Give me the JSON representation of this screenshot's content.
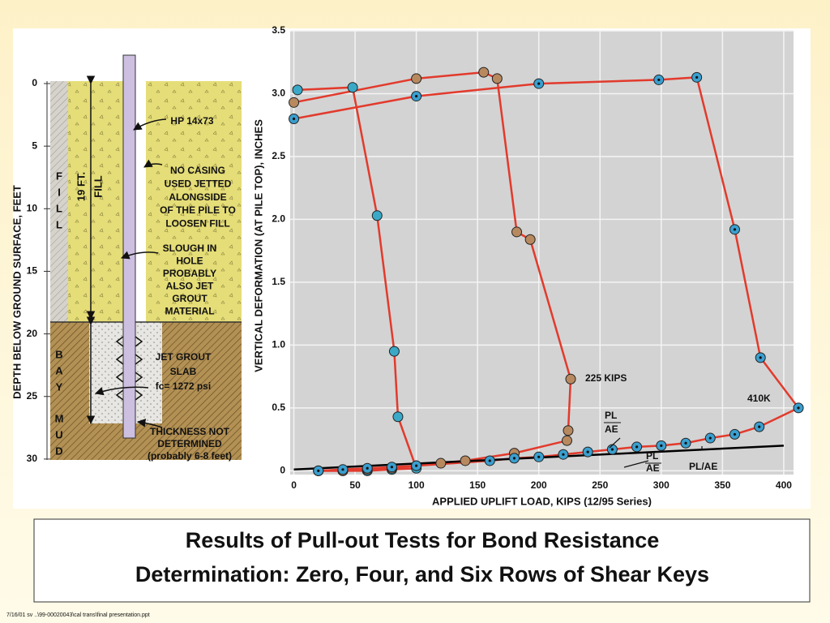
{
  "chart_data": {
    "type": "line",
    "x_label": "APPLIED UPLIFT LOAD, KIPS (12/95 Series)",
    "y_label": "VERTICAL DEFORMATION (AT PILE TOP), INCHES",
    "xlim": [
      -3,
      408
    ],
    "ylim": [
      -0.03,
      3.5
    ],
    "xticks": [
      0,
      50,
      100,
      150,
      200,
      250,
      300,
      350,
      400
    ],
    "yticks": [
      0,
      0.5,
      {
        "value": 1,
        "label": "1.0"
      },
      1.5,
      {
        "value": 2,
        "label": "2.0"
      },
      2.5,
      {
        "value": 3,
        "label": "3.0"
      },
      3.5
    ],
    "grid": true,
    "series": [
      {
        "color": "#3aa9c8",
        "line_color": "#e23a2c",
        "marker": "plain",
        "x": [
          20,
          40,
          60,
          80,
          100,
          85,
          82,
          68,
          48,
          3
        ],
        "values": [
          0,
          0,
          0,
          0.01,
          0.02,
          0.43,
          0.95,
          2.03,
          3.05,
          3.03
        ]
      },
      {
        "color": "#b8895f",
        "line_color": "#e23a2c",
        "marker": "plain",
        "x": [
          20,
          40,
          60,
          80,
          100,
          120,
          140,
          180,
          223,
          224,
          226,
          193,
          182,
          166,
          155,
          100,
          0
        ],
        "values": [
          0,
          0,
          0.01,
          0.02,
          0.04,
          0.06,
          0.08,
          0.14,
          0.24,
          0.32,
          0.73,
          1.84,
          1.9,
          3.12,
          3.17,
          3.12,
          2.93
        ]
      },
      {
        "color": "#3a9fcf",
        "line_color": "#e23a2c",
        "marker": "dot",
        "x": [
          20,
          40,
          60,
          80,
          100,
          160,
          180,
          200,
          220,
          240,
          260,
          280,
          300,
          320,
          340,
          360,
          380,
          412,
          381,
          360,
          329,
          298,
          200,
          100,
          0
        ],
        "values": [
          0,
          0.01,
          0.02,
          0.03,
          0.04,
          0.08,
          0.1,
          0.11,
          0.13,
          0.15,
          0.17,
          0.19,
          0.2,
          0.22,
          0.26,
          0.29,
          0.35,
          0.5,
          0.9,
          1.92,
          3.13,
          3.11,
          3.08,
          2.98,
          2.8
        ]
      },
      {
        "color": "#000000",
        "line_color": "#000000",
        "marker": "none",
        "x": [
          0,
          400
        ],
        "values": [
          0.01,
          0.2
        ]
      }
    ],
    "annotations": [
      "225 KIPS",
      "410K",
      "PL",
      "AE",
      "PL",
      "AE",
      "PL/AE"
    ]
  },
  "diagram": {
    "depth_ticks": [
      0,
      5,
      10,
      15,
      20,
      25,
      30
    ],
    "depth_label": "DEPTH BELOW GROUND SURFACE, FEET",
    "fill_letters": [
      "F",
      "I",
      "L",
      "L"
    ],
    "bay_letters": [
      "B",
      "A",
      "Y"
    ],
    "mud_letters": [
      "M",
      "U",
      "D"
    ],
    "fill_height": [
      "19 FT.",
      "FILL"
    ],
    "pile": "HP 14x73",
    "casing_note": [
      "NO CASING",
      "USED JETTED",
      "ALONGSIDE",
      "OF THE PILE TO",
      "LOOSEN FILL"
    ],
    "slough_note": [
      "SLOUGH IN",
      "HOLE",
      "PROBABLY",
      "ALSO JET",
      "GROUT",
      "MATERIAL"
    ],
    "slab_note": [
      "JET GROUT",
      "SLAB",
      "fc= 1272 psi"
    ],
    "thickness_note": [
      "THICKNESS NOT",
      "DETERMINED",
      "(probably 6-8 feet)"
    ]
  },
  "caption": [
    "Results of Pull-out Tests for Bond Resistance",
    "Determination: Zero, Four, and Six Rows of Shear Keys"
  ],
  "footer": "7/16/01 sv ..\\99-00020043\\cal trans\\final presentation.ppt"
}
